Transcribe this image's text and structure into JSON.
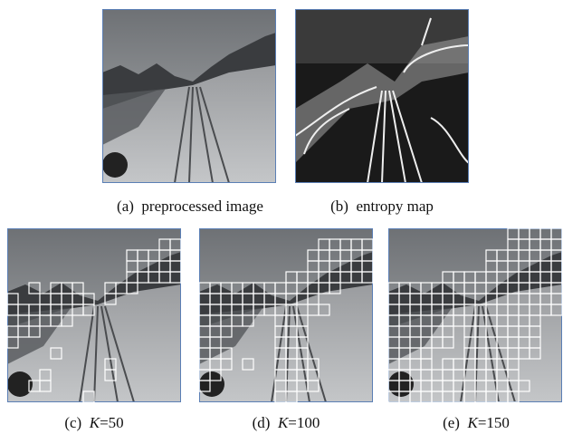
{
  "figures": [
    {
      "label": "(a)",
      "caption": "preprocessed image"
    },
    {
      "label": "(b)",
      "caption": "entropy map"
    },
    {
      "label": "(c)",
      "variable": "K",
      "caption": "=50"
    },
    {
      "label": "(d)",
      "variable": "K",
      "caption": "=100"
    },
    {
      "label": "(e)",
      "variable": "K",
      "caption": "=150"
    }
  ]
}
